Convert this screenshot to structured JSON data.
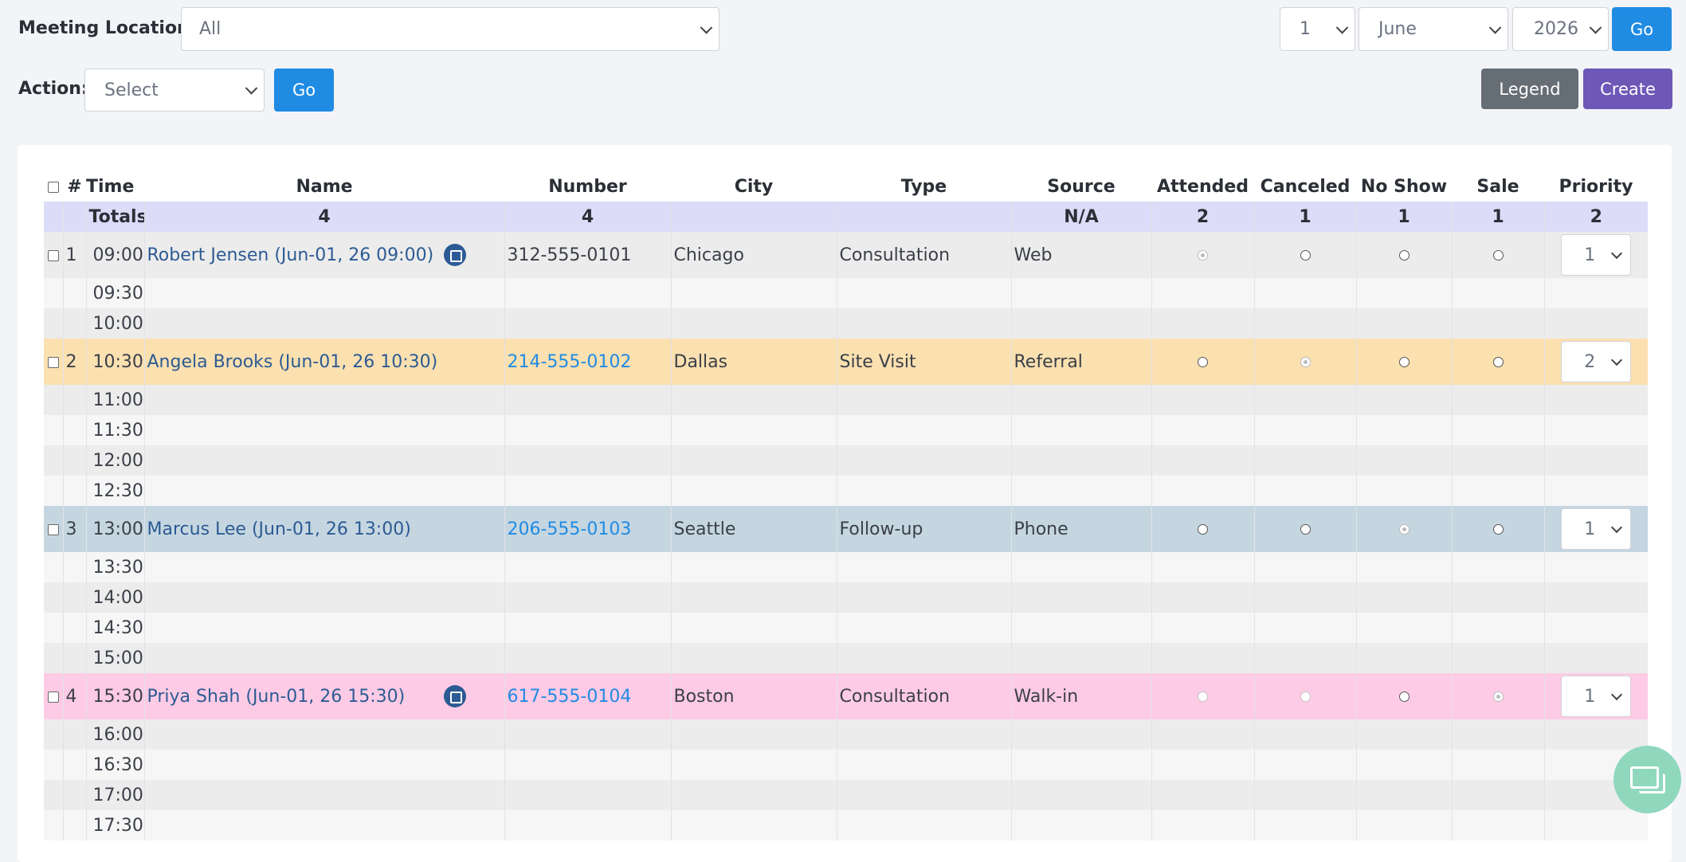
{
  "filters": {
    "location_label": "Meeting Location:",
    "location_value": "All",
    "day_value": "1",
    "month_value": "June",
    "year_value": "2026",
    "go_label": "Go",
    "action_label": "Action:",
    "action_value": "Select",
    "action_go_label": "Go",
    "legend_label": "Legend",
    "create_label": "Create"
  },
  "columns": [
    "#",
    "Time",
    "Name",
    "Number",
    "City",
    "Type",
    "Source",
    "Attended",
    "Canceled",
    "No Show",
    "Sale",
    "Priority"
  ],
  "totals": {
    "label": "Totals",
    "name": "4",
    "number": "4",
    "source": "N/A",
    "attended": "2",
    "canceled": "1",
    "no_show": "1",
    "sale": "1",
    "priority": "2"
  },
  "appointments": [
    {
      "num": "1",
      "time": "09:00",
      "name": "Robert Jensen  (Jun-01, 26 09:00)",
      "number": "312-555-0101",
      "city": "Chicago",
      "type": "Consultation",
      "source": "Web",
      "priority": "1",
      "has_cal_icon": true
    },
    {
      "num": "2",
      "time": "10:30",
      "name": "Angela Brooks  (Jun-01, 26 10:30)",
      "number": "214-555-0102",
      "city": "Dallas",
      "type": "Site Visit",
      "source": "Referral",
      "priority": "2",
      "has_cal_icon": false
    },
    {
      "num": "3",
      "time": "13:00",
      "name": "Marcus Lee  (Jun-01, 26 13:00)",
      "number": "206-555-0103",
      "city": "Seattle",
      "type": "Follow-up",
      "source": "Phone",
      "priority": "1",
      "has_cal_icon": false
    },
    {
      "num": "4",
      "time": "15:30",
      "name": "Priya Shah  (Jun-01, 26 15:30)",
      "number": "617-555-0104",
      "city": "Boston",
      "type": "Consultation",
      "source": "Walk-in",
      "priority": "1",
      "has_cal_icon": true
    }
  ],
  "slots": [
    "09:30",
    "10:00",
    "11:00",
    "11:30",
    "12:00",
    "12:30",
    "13:30",
    "14:00",
    "14:30",
    "15:00",
    "16:00",
    "16:30",
    "17:00",
    "17:30"
  ],
  "colors": {
    "row_1": "#ececec",
    "row_2": "#fbe0b0",
    "row_3": "#c5d6e1",
    "row_4": "#fdcbe5",
    "totals_row": "#dcdcf9",
    "primary": "#1f8be3",
    "create": "#6d57b7",
    "legend": "#666e75",
    "chat": "#8fd8bd"
  },
  "icons": [
    "chevron-down-icon",
    "calendar-icon",
    "chat-icon"
  ]
}
